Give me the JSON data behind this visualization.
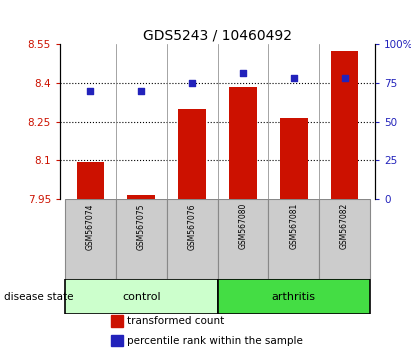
{
  "title": "GDS5243 / 10460492",
  "samples": [
    "GSM567074",
    "GSM567075",
    "GSM567076",
    "GSM567080",
    "GSM567081",
    "GSM567082"
  ],
  "bar_values": [
    8.095,
    7.967,
    8.3,
    8.382,
    8.263,
    8.522
  ],
  "dot_values": [
    70,
    70,
    75,
    81,
    78,
    78
  ],
  "ylim_left": [
    7.95,
    8.55
  ],
  "ylim_right": [
    0,
    100
  ],
  "yticks_left": [
    7.95,
    8.1,
    8.25,
    8.4,
    8.55
  ],
  "ytick_labels_left": [
    "7.95",
    "8.1",
    "8.25",
    "8.4",
    "8.55"
  ],
  "yticks_right": [
    0,
    25,
    50,
    75,
    100
  ],
  "ytick_labels_right": [
    "0",
    "25",
    "50",
    "75",
    "100%"
  ],
  "bar_color": "#cc1100",
  "dot_color": "#2222bb",
  "bar_bottom": 7.95,
  "sample_box_color": "#cccccc",
  "control_color": "#ccffcc",
  "arthritis_color": "#44dd44",
  "legend_items": [
    {
      "label": "transformed count",
      "color": "#cc1100"
    },
    {
      "label": "percentile rank within the sample",
      "color": "#2222bb"
    }
  ],
  "disease_state_label": "disease state"
}
